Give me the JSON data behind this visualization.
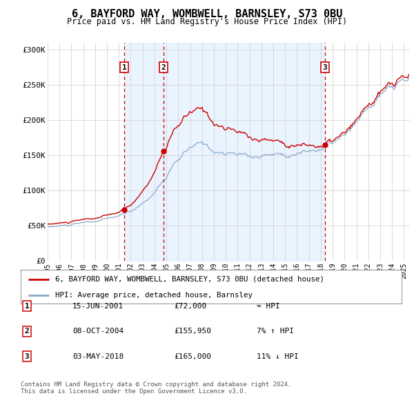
{
  "title": "6, BAYFORD WAY, WOMBWELL, BARNSLEY, S73 0BU",
  "subtitle": "Price paid vs. HM Land Registry's House Price Index (HPI)",
  "footer1": "Contains HM Land Registry data © Crown copyright and database right 2024.",
  "footer2": "This data is licensed under the Open Government Licence v3.0.",
  "legend1": "6, BAYFORD WAY, WOMBWELL, BARNSLEY, S73 0BU (detached house)",
  "legend2": "HPI: Average price, detached house, Barnsley",
  "transactions": [
    {
      "num": 1,
      "date": "15-JUN-2001",
      "price": 72000,
      "rel": "≈ HPI",
      "year": 2001.46
    },
    {
      "num": 2,
      "date": "08-OCT-2004",
      "price": 155950,
      "rel": "7% ↑ HPI",
      "year": 2004.77
    },
    {
      "num": 3,
      "date": "03-MAY-2018",
      "price": 165000,
      "rel": "11% ↓ HPI",
      "year": 2018.34
    }
  ],
  "xlim": [
    1995.0,
    2025.5
  ],
  "ylim": [
    0,
    310000
  ],
  "yticks": [
    0,
    50000,
    100000,
    150000,
    200000,
    250000,
    300000
  ],
  "ytick_labels": [
    "£0",
    "£50K",
    "£100K",
    "£150K",
    "£200K",
    "£250K",
    "£300K"
  ],
  "xticks": [
    1995,
    1996,
    1997,
    1998,
    1999,
    2000,
    2001,
    2002,
    2003,
    2004,
    2005,
    2006,
    2007,
    2008,
    2009,
    2010,
    2011,
    2012,
    2013,
    2014,
    2015,
    2016,
    2017,
    2018,
    2019,
    2020,
    2021,
    2022,
    2023,
    2024,
    2025
  ],
  "red_color": "#cc0000",
  "blue_color": "#88aacc",
  "shade_color": "#ddeeff",
  "grid_color": "#cccccc",
  "box_color": "#cc0000",
  "bg_color": "#ffffff",
  "hpi_base": [
    48000,
    49500,
    51000,
    53000,
    55000,
    58000,
    62000,
    68000,
    80000,
    98000,
    122000,
    143000,
    158000,
    162000,
    155000,
    152000,
    150000,
    149000,
    151000,
    155000,
    158000,
    163000,
    167000,
    172000,
    180000,
    188000,
    200000,
    225000,
    240000,
    250000,
    260000
  ],
  "price_base": [
    48000,
    49500,
    51000,
    53000,
    55000,
    58000,
    62000,
    68000,
    80000,
    98000,
    122000,
    143000,
    158000,
    162000,
    155000,
    152000,
    150000,
    149000,
    151000,
    155000,
    158000,
    163000,
    167000,
    172000,
    180000,
    188000,
    200000,
    225000,
    240000,
    250000,
    260000
  ],
  "noise_seed": 42
}
